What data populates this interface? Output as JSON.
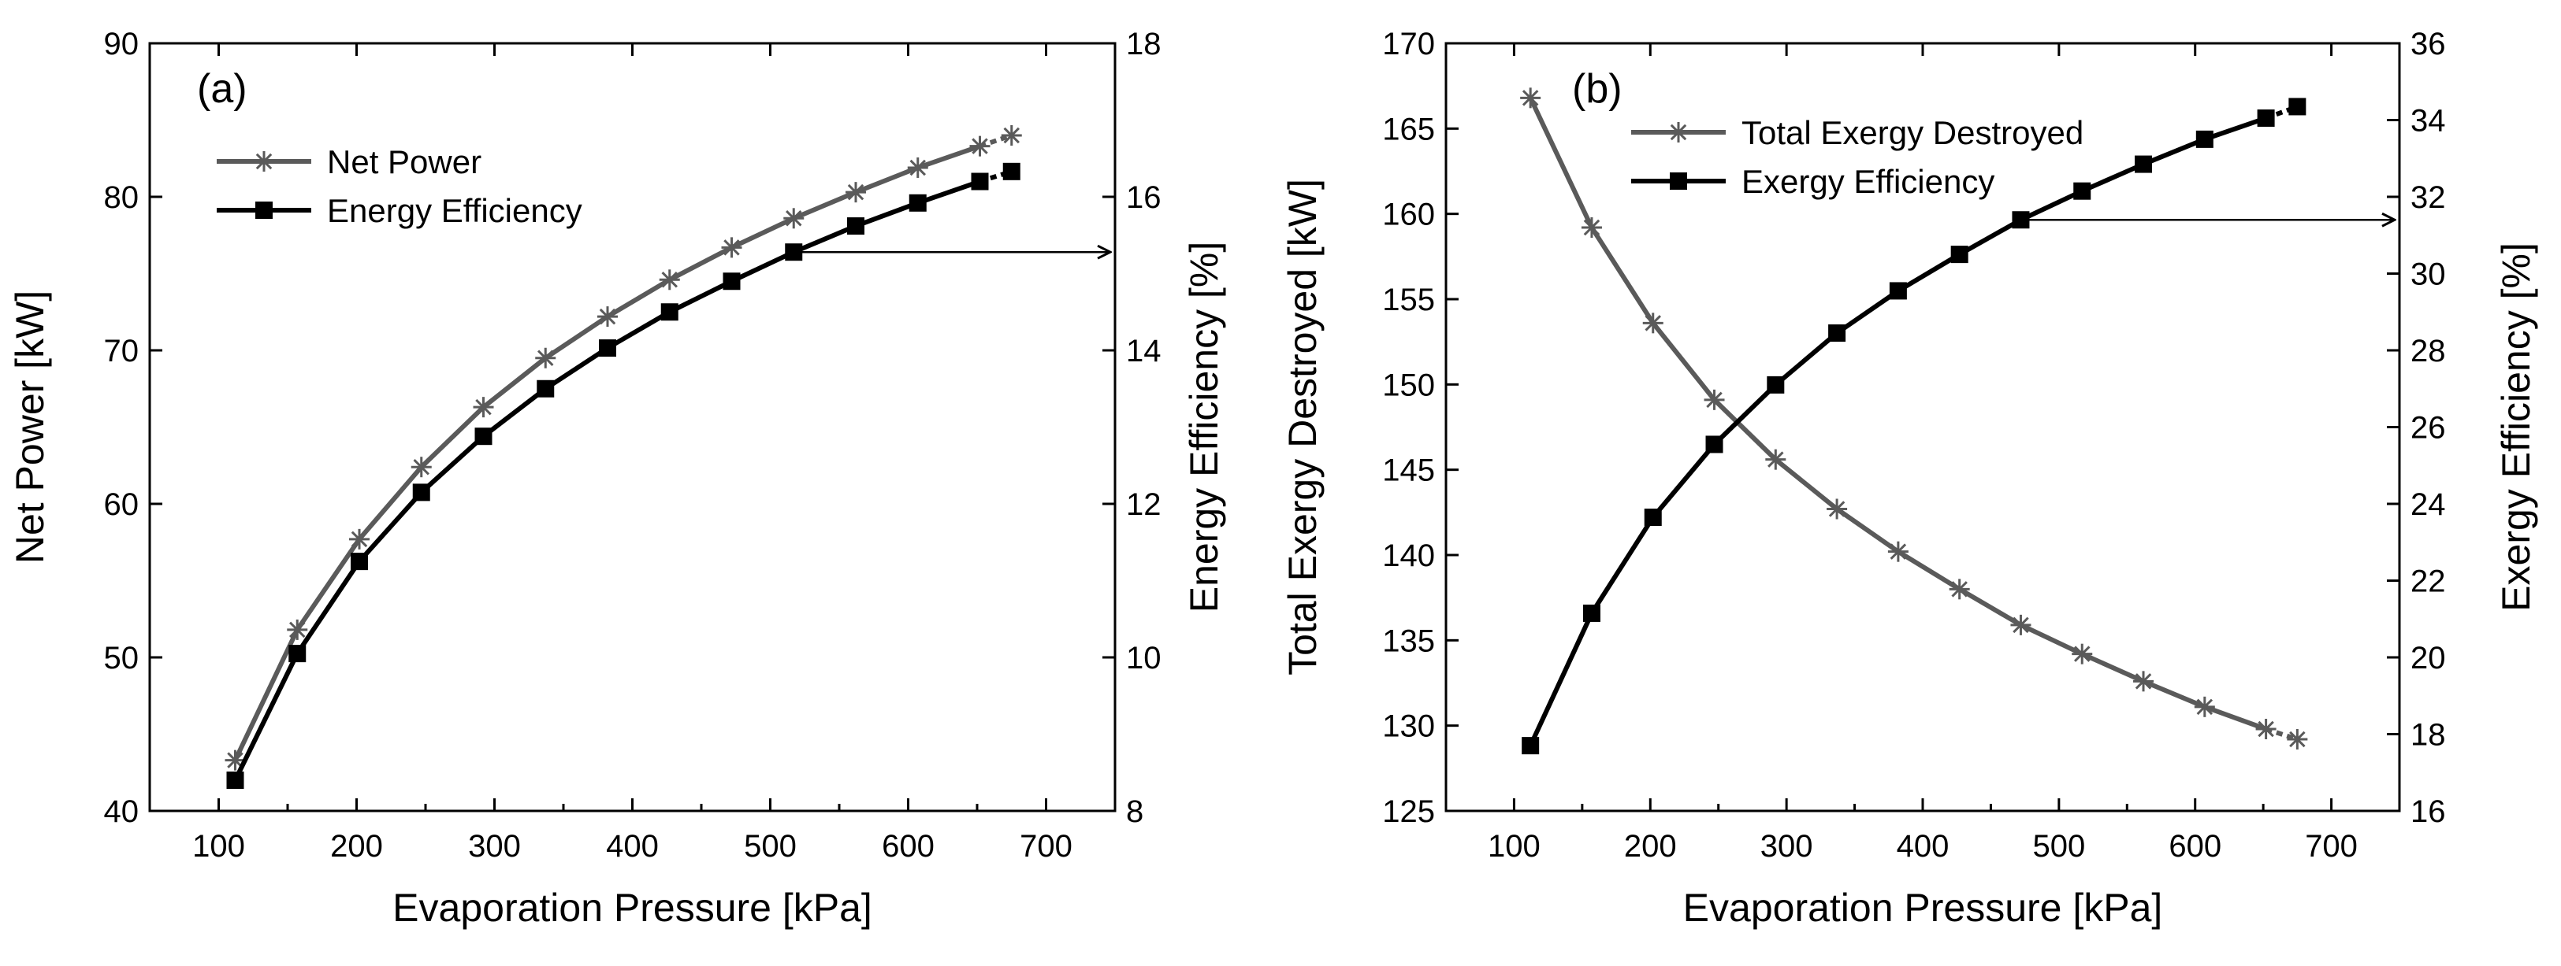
{
  "chart_data": [
    {
      "type": "line",
      "panel_label": "(a)",
      "xlabel": "Evaporation Pressure [kPa]",
      "ylabel_left": "Net Power [kW]",
      "ylabel_right": "Energy Efficiency [%]",
      "xlim": [
        50,
        750
      ],
      "xticks": [
        100,
        200,
        300,
        400,
        500,
        600,
        700
      ],
      "ylim_left": [
        40,
        90
      ],
      "yticks_left": [
        40,
        50,
        60,
        70,
        80,
        90
      ],
      "ylim_right": [
        8,
        18
      ],
      "yticks_right": [
        8,
        10,
        12,
        14,
        16,
        18
      ],
      "legend_position": "upper-left",
      "series": [
        {
          "name": "Net Power",
          "axis": "left",
          "marker": "asterisk",
          "color": "#5a5a5a",
          "x": [
            112,
            157,
            202,
            247,
            292,
            337,
            382,
            427,
            472,
            517,
            562,
            607,
            652,
            675
          ],
          "y": [
            43.3,
            51.8,
            57.7,
            62.4,
            66.3,
            69.5,
            72.2,
            74.6,
            76.7,
            78.6,
            80.3,
            81.9,
            83.3,
            84.0
          ]
        },
        {
          "name": "Energy Efficiency",
          "axis": "right",
          "marker": "square",
          "color": "#000000",
          "x": [
            112,
            157,
            202,
            247,
            292,
            337,
            382,
            427,
            472,
            517,
            562,
            607,
            652,
            675
          ],
          "y": [
            8.4,
            10.05,
            11.25,
            12.15,
            12.88,
            13.5,
            14.03,
            14.5,
            14.9,
            15.28,
            15.62,
            15.92,
            16.2,
            16.33
          ]
        }
      ],
      "annotation": {
        "type": "arrow",
        "points_to": "right-axis",
        "series": "Energy Efficiency"
      }
    },
    {
      "type": "line",
      "panel_label": "(b)",
      "xlabel": "Evaporation Pressure [kPa]",
      "ylabel_left": "Total Exergy Destroyed [kW]",
      "ylabel_right": "Exergy  Efficiency [%]",
      "xlim": [
        50,
        750
      ],
      "xticks": [
        100,
        200,
        300,
        400,
        500,
        600,
        700
      ],
      "ylim_left": [
        125,
        170
      ],
      "yticks_left": [
        125,
        130,
        135,
        140,
        145,
        150,
        155,
        160,
        165,
        170
      ],
      "ylim_right": [
        16,
        36
      ],
      "yticks_right": [
        16,
        18,
        20,
        22,
        24,
        26,
        28,
        30,
        32,
        34,
        36
      ],
      "legend_position": "upper-center",
      "series": [
        {
          "name": "Total Exergy Destroyed",
          "axis": "left",
          "marker": "asterisk",
          "color": "#5a5a5a",
          "x": [
            112,
            157,
            202,
            247,
            292,
            337,
            382,
            427,
            472,
            517,
            562,
            607,
            652,
            675
          ],
          "y": [
            166.8,
            159.2,
            153.6,
            149.1,
            145.6,
            142.7,
            140.2,
            138.0,
            135.9,
            134.2,
            132.6,
            131.1,
            129.8,
            129.2
          ]
        },
        {
          "name": "Exergy  Efficiency",
          "axis": "right",
          "marker": "square",
          "color": "#000000",
          "x": [
            112,
            157,
            202,
            247,
            292,
            337,
            382,
            427,
            472,
            517,
            562,
            607,
            652,
            675
          ],
          "y": [
            17.7,
            21.15,
            23.65,
            25.55,
            27.1,
            28.45,
            29.55,
            30.5,
            31.4,
            32.15,
            32.85,
            33.5,
            34.05,
            34.35
          ]
        }
      ],
      "annotation": {
        "type": "arrow",
        "points_to": "right-axis",
        "series": "Exergy  Efficiency"
      }
    }
  ]
}
